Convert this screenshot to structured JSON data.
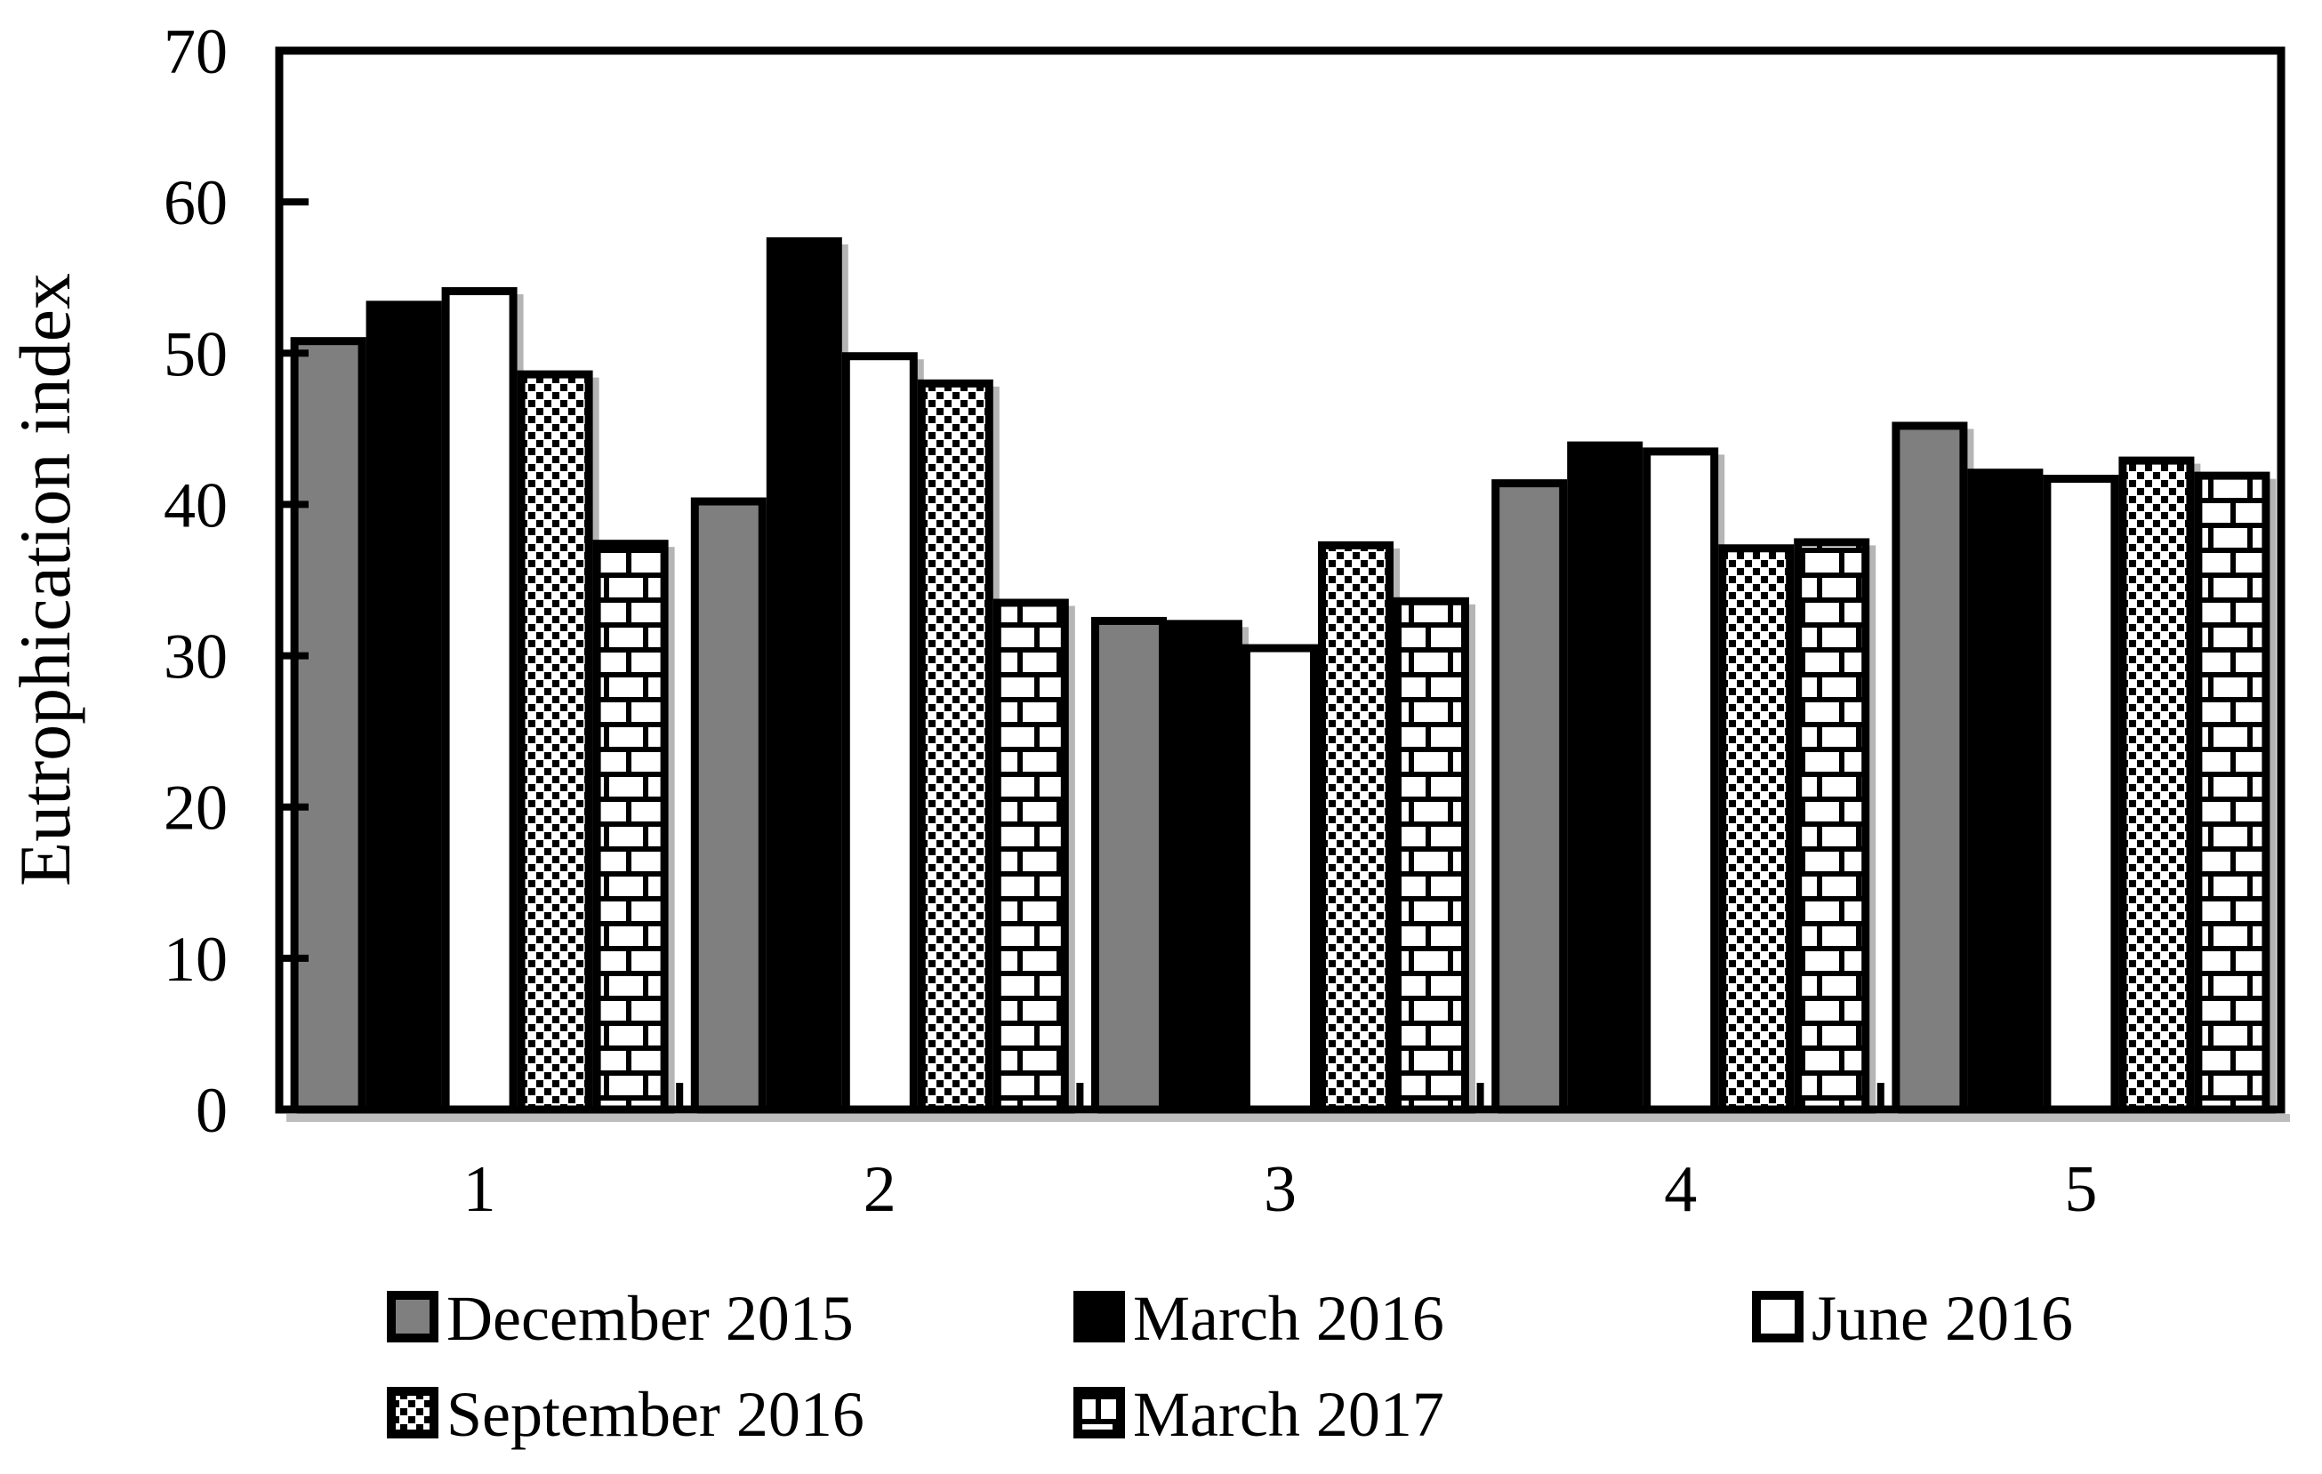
{
  "chart_data": {
    "type": "bar",
    "title": "",
    "xlabel": "",
    "ylabel": "Eutrophication index",
    "categories": [
      "1",
      "2",
      "3",
      "4",
      "5"
    ],
    "series": [
      {
        "name": "December 2015",
        "pattern": "solid-gray",
        "values": [
          50.8,
          40.2,
          32.3,
          41.4,
          45.2
        ]
      },
      {
        "name": "March 2016",
        "pattern": "solid-black",
        "values": [
          53.2,
          57.4,
          32.1,
          43.9,
          42.1
        ]
      },
      {
        "name": "June 2016",
        "pattern": "solid-white",
        "values": [
          54.1,
          49.8,
          30.5,
          43.5,
          41.7
        ]
      },
      {
        "name": "September 2016",
        "pattern": "diagonal-hatch",
        "values": [
          48.6,
          48.0,
          37.3,
          37.1,
          42.9
        ]
      },
      {
        "name": "March 2017",
        "pattern": "brick",
        "values": [
          37.4,
          33.5,
          33.6,
          37.5,
          41.9
        ]
      }
    ],
    "ylim": [
      0,
      70
    ],
    "ytick_step": 10,
    "ytick_labels": [
      "0",
      "10",
      "20",
      "30",
      "40",
      "50",
      "60",
      "70"
    ],
    "grid": false,
    "legend_position": "bottom",
    "colors": {
      "gray_fill": "#7f7f7f",
      "black_fill": "#000000",
      "white_fill": "#ffffff",
      "axis": "#000000",
      "shadow": "#b5b5b5",
      "background": "#ffffff"
    }
  }
}
